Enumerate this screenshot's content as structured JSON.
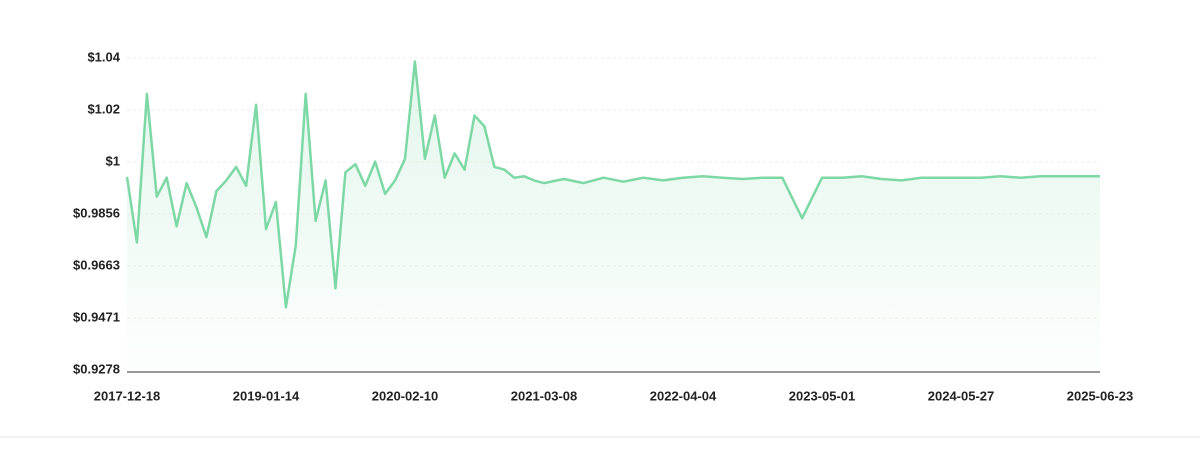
{
  "chart_data": {
    "type": "line",
    "x": [
      "2017-12-18",
      "2018-01-15",
      "2018-02-12",
      "2018-03-12",
      "2018-04-09",
      "2018-05-07",
      "2018-06-04",
      "2018-07-02",
      "2018-07-30",
      "2018-08-27",
      "2018-09-24",
      "2018-10-22",
      "2018-11-19",
      "2018-12-17",
      "2019-01-14",
      "2019-02-11",
      "2019-03-11",
      "2019-04-08",
      "2019-05-06",
      "2019-06-03",
      "2019-07-01",
      "2019-07-29",
      "2019-08-26",
      "2019-09-23",
      "2019-10-21",
      "2019-11-18",
      "2019-12-16",
      "2020-01-13",
      "2020-02-10",
      "2020-03-09",
      "2020-04-06",
      "2020-05-04",
      "2020-06-01",
      "2020-06-29",
      "2020-07-27",
      "2020-08-24",
      "2020-09-21",
      "2020-10-19",
      "2020-11-16",
      "2020-12-14",
      "2021-01-11",
      "2021-02-08",
      "2021-03-08",
      "2021-05-03",
      "2021-06-28",
      "2021-08-23",
      "2021-10-18",
      "2021-12-13",
      "2022-02-07",
      "2022-04-04",
      "2022-05-30",
      "2022-07-25",
      "2022-09-19",
      "2022-11-14",
      "2023-01-09",
      "2023-03-06",
      "2023-05-01",
      "2023-06-26",
      "2023-08-21",
      "2023-10-16",
      "2023-12-11",
      "2024-02-05",
      "2024-04-01",
      "2024-05-27",
      "2024-07-22",
      "2024-09-16",
      "2024-11-11",
      "2025-01-06",
      "2025-03-03",
      "2025-04-28",
      "2025-06-23"
    ],
    "series": [
      {
        "color": "#7dd8a6",
        "values": [
          0.9993,
          0.975,
          1.03,
          0.992,
          0.999,
          0.981,
          0.997,
          0.988,
          0.977,
          0.994,
          0.998,
          1.003,
          0.996,
          1.026,
          0.98,
          0.99,
          0.951,
          0.974,
          1.03,
          0.983,
          0.998,
          0.958,
          1.001,
          1.004,
          0.996,
          1.005,
          0.993,
          0.998,
          1.006,
          1.042,
          1.006,
          1.022,
          0.999,
          1.008,
          1.002,
          1.022,
          1.018,
          1.003,
          1.002,
          0.999,
          0.9995,
          0.998,
          0.997,
          0.9985,
          0.997,
          0.999,
          0.9975,
          0.999,
          0.998,
          0.999,
          0.9995,
          0.999,
          0.9985,
          0.999,
          0.999,
          0.984,
          0.999,
          0.999,
          0.9995,
          0.9985,
          0.998,
          0.999,
          0.999,
          0.999,
          0.999,
          0.9995,
          0.999,
          0.9995,
          0.9995,
          0.9995,
          0.9995
        ]
      }
    ],
    "xlim": [
      "2017-12-18",
      "2025-06-23"
    ],
    "xticks": [
      "2017-12-18",
      "2019-01-14",
      "2020-02-10",
      "2021-03-08",
      "2022-04-04",
      "2023-05-01",
      "2024-05-27",
      "2025-06-23"
    ],
    "ylim": [
      0.9278,
      1.0433
    ],
    "yticks": [
      {
        "value": 0.9278,
        "label": "$0.9278"
      },
      {
        "value": 0.94705,
        "label": "$0.9471"
      },
      {
        "value": 0.9663,
        "label": "$0.9663"
      },
      {
        "value": 0.9856,
        "label": "$0.9856"
      },
      {
        "value": 1.0048,
        "label": "$1"
      },
      {
        "value": 1.02405,
        "label": "$1.02"
      },
      {
        "value": 1.0433,
        "label": "$1.04"
      }
    ],
    "grid": true
  }
}
